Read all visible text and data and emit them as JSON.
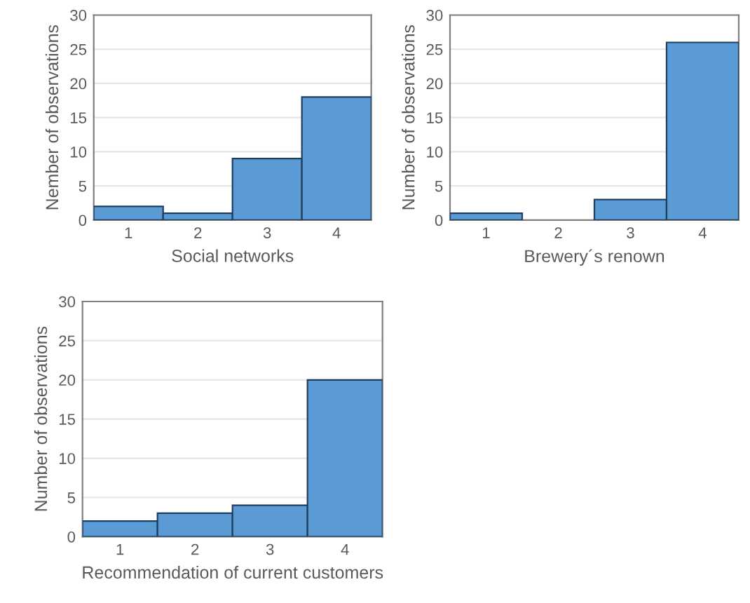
{
  "chart_data": [
    {
      "type": "bar",
      "categories": [
        "1",
        "2",
        "3",
        "4"
      ],
      "values": [
        2,
        1,
        9,
        18
      ],
      "color": "#5b9bd5",
      "xlabel": "Social networks",
      "ylabel": "Nember of observations",
      "ylim": [
        0,
        30
      ],
      "yticks": [
        0,
        5,
        10,
        15,
        20,
        25,
        30
      ],
      "grid": "y"
    },
    {
      "type": "bar",
      "categories": [
        "1",
        "2",
        "3",
        "4"
      ],
      "values": [
        1,
        0,
        3,
        26
      ],
      "color": "#5b9bd5",
      "xlabel": "Brewery´s renown",
      "ylabel": "Number of observations",
      "ylim": [
        0,
        30
      ],
      "yticks": [
        0,
        5,
        10,
        15,
        20,
        25,
        30
      ],
      "grid": "y"
    },
    {
      "type": "bar",
      "categories": [
        "1",
        "2",
        "3",
        "4"
      ],
      "values": [
        2,
        3,
        4,
        20
      ],
      "color": "#5b9bd5",
      "xlabel": "Recommendation of current customers",
      "ylabel": "Number of observations",
      "ylim": [
        0,
        30
      ],
      "yticks": [
        0,
        5,
        10,
        15,
        20,
        25,
        30
      ],
      "grid": "y"
    }
  ]
}
